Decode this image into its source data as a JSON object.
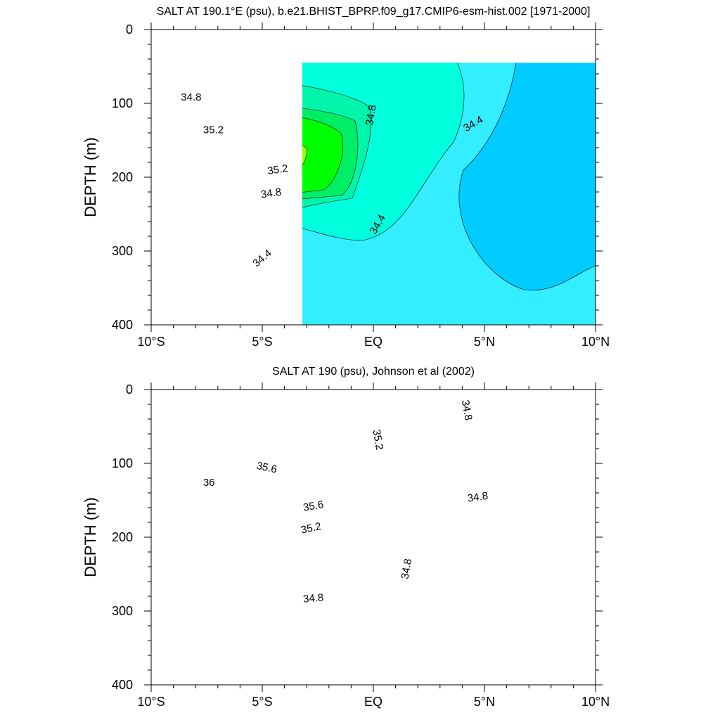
{
  "figure": {
    "title_top": "SALT AT 190.1°E (psu), b.e21.BHIST_BPRP.f09_g17.CMIP6-esm-hist.002 [1971-2000]",
    "title_bottom": "SALT AT 190 (psu), Johnson et al (2002)"
  },
  "chart_data": [
    {
      "type": "heatmap",
      "subtype": "filled-contour",
      "title": "SALT AT 190.1°E (psu), b.e21.BHIST_BPRP.f09_g17.CMIP6-esm-hist.002 [1971-2000]",
      "xlabel": "",
      "ylabel": "DEPTH (m)",
      "xlim": [
        -10,
        10
      ],
      "ylim": [
        0,
        400
      ],
      "y_inverted": true,
      "x_ticks": [
        -10,
        -5,
        0,
        5,
        10
      ],
      "x_tick_labels": [
        "10°S",
        "5°S",
        "EQ",
        "5°N",
        "10°N"
      ],
      "y_ticks": [
        0,
        100,
        200,
        300,
        400
      ],
      "y_tick_labels": [
        "0",
        "100",
        "200",
        "300",
        "400"
      ],
      "data_x_range": [
        -10,
        10
      ],
      "data_depth_range": [
        5,
        400
      ],
      "contour_interval": 0.2,
      "levels": [
        34.0,
        34.2,
        34.4,
        34.6,
        34.8,
        35.0,
        35.2,
        35.4
      ],
      "contour_labels": [
        {
          "text": "34.8",
          "x": -8.2,
          "y": 92,
          "angle": 0
        },
        {
          "text": "35.2",
          "x": -7.2,
          "y": 136,
          "angle": 0
        },
        {
          "text": "35.2",
          "x": -4.3,
          "y": 190,
          "angle": -8
        },
        {
          "text": "34.8",
          "x": -4.6,
          "y": 222,
          "angle": -8
        },
        {
          "text": "34.8",
          "x": -0.1,
          "y": 116,
          "angle": -80
        },
        {
          "text": "34.4",
          "x": 4.5,
          "y": 128,
          "angle": -30
        },
        {
          "text": "34.4",
          "x": 0.2,
          "y": 264,
          "angle": -60
        },
        {
          "text": "34.4",
          "x": -5.0,
          "y": 310,
          "angle": -40
        }
      ]
    },
    {
      "type": "heatmap",
      "subtype": "filled-contour",
      "title": "SALT AT 190 (psu), Johnson et al (2002)",
      "xlabel": "",
      "ylabel": "DEPTH (m)",
      "xlim": [
        -10,
        10
      ],
      "ylim": [
        0,
        400
      ],
      "y_inverted": true,
      "x_ticks": [
        -10,
        -5,
        0,
        5,
        10
      ],
      "x_tick_labels": [
        "10°S",
        "5°S",
        "EQ",
        "5°N",
        "10°N"
      ],
      "y_ticks": [
        0,
        100,
        200,
        300,
        400
      ],
      "y_tick_labels": [
        "0",
        "100",
        "200",
        "300",
        "400"
      ],
      "data_x_range": [
        -8,
        8
      ],
      "data_depth_range": [
        5,
        400
      ],
      "contour_interval": 0.2,
      "levels": [
        34.6,
        34.8,
        35.0,
        35.2,
        35.4,
        35.6,
        35.8,
        36.0
      ],
      "contour_labels": [
        {
          "text": "34.8",
          "x": 4.2,
          "y": 28,
          "angle": 80
        },
        {
          "text": "35.2",
          "x": 0.2,
          "y": 68,
          "angle": 80
        },
        {
          "text": "35.6",
          "x": -4.8,
          "y": 106,
          "angle": 12
        },
        {
          "text": "36",
          "x": -7.4,
          "y": 126,
          "angle": 0
        },
        {
          "text": "35.6",
          "x": -2.7,
          "y": 158,
          "angle": -10
        },
        {
          "text": "35.2",
          "x": -2.8,
          "y": 188,
          "angle": -12
        },
        {
          "text": "34.8",
          "x": 4.7,
          "y": 146,
          "angle": -8
        },
        {
          "text": "34.8",
          "x": 1.5,
          "y": 243,
          "angle": -80
        },
        {
          "text": "34.8",
          "x": -2.7,
          "y": 283,
          "angle": -5
        }
      ]
    }
  ],
  "colors": {
    "s_34_0": "#0099ff",
    "s_34_2": "#00ccff",
    "s_34_4": "#33eeff",
    "s_34_6": "#00ffdd",
    "s_34_8": "#00f5aa",
    "s_35_0": "#00ee66",
    "s_35_2": "#00ff00",
    "s_35_4": "#99ff00",
    "s_35_6": "#ffff00",
    "s_35_8": "#ffdd33",
    "s_36_0": "#ffc840",
    "line": "#000000"
  }
}
